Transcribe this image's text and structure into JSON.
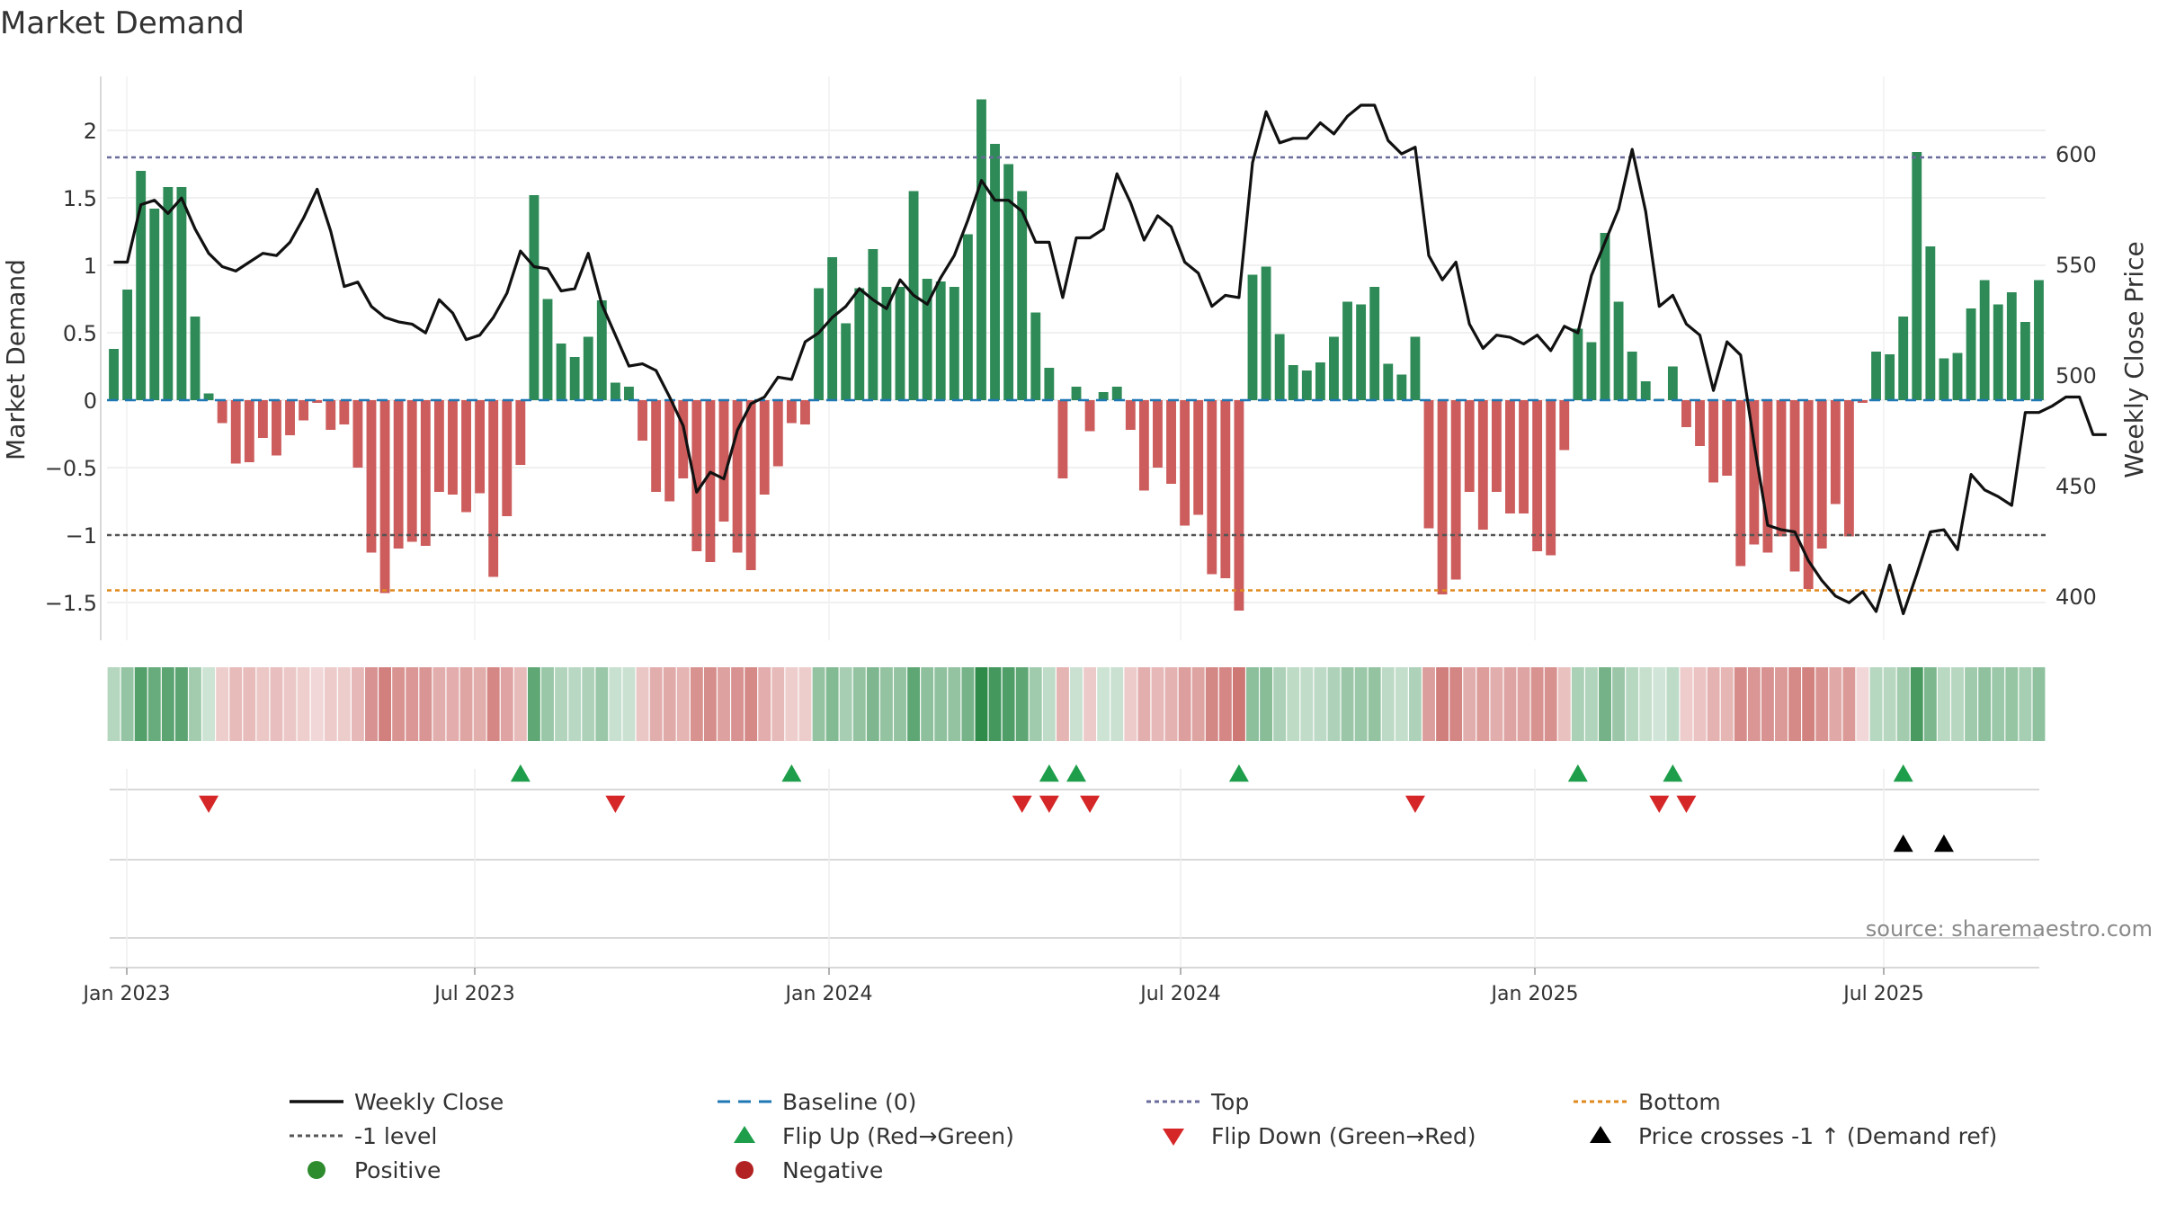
{
  "chart_data": {
    "type": "bar",
    "title": "Market Demand",
    "ylabel_left": "Market Demand",
    "ylabel_right": "Weekly Close Price",
    "x_ticks": [
      "Jan 2023",
      "Jul 2023",
      "Jan 2024",
      "Jul 2024",
      "Jan 2025",
      "Jul 2025"
    ],
    "y_left_ticks": [
      {
        "v": 2,
        "label": "2"
      },
      {
        "v": 1.5,
        "label": "1.5"
      },
      {
        "v": 1,
        "label": "1"
      },
      {
        "v": 0.5,
        "label": "0.5"
      },
      {
        "v": 0,
        "label": "0"
      },
      {
        "v": -0.5,
        "label": "−0.5"
      },
      {
        "v": -1,
        "label": "−1"
      },
      {
        "v": -1.5,
        "label": "−1.5"
      }
    ],
    "y_right_ticks": [
      {
        "v": 600,
        "label": "600"
      },
      {
        "v": 550,
        "label": "550"
      },
      {
        "v": 500,
        "label": "500"
      },
      {
        "v": 450,
        "label": "450"
      },
      {
        "v": 400,
        "label": "400"
      }
    ],
    "y_left_range": [
      -1.78,
      2.4
    ],
    "y_right_range": [
      380,
      635
    ],
    "ref_lines": {
      "top": 1.8,
      "minus_one": -1.0,
      "bottom": -1.41
    },
    "demand": [
      0.38,
      0.82,
      1.7,
      1.42,
      1.58,
      1.58,
      0.62,
      0.05,
      -0.17,
      -0.47,
      -0.46,
      -0.28,
      -0.41,
      -0.26,
      -0.15,
      -0.02,
      -0.22,
      -0.18,
      -0.5,
      -1.13,
      -1.43,
      -1.1,
      -1.05,
      -1.08,
      -0.68,
      -0.7,
      -0.83,
      -0.69,
      -1.31,
      -0.86,
      -0.48,
      1.52,
      0.75,
      0.42,
      0.32,
      0.47,
      0.74,
      0.13,
      0.1,
      -0.3,
      -0.68,
      -0.75,
      -0.58,
      -1.12,
      -1.2,
      -0.9,
      -1.13,
      -1.26,
      -0.7,
      -0.49,
      -0.17,
      -0.18,
      0.83,
      1.06,
      0.57,
      0.83,
      1.12,
      0.84,
      0.84,
      1.55,
      0.9,
      0.88,
      0.84,
      1.23,
      2.23,
      1.9,
      1.75,
      1.55,
      0.65,
      0.24,
      -0.58,
      0.1,
      -0.23,
      0.06,
      0.1,
      -0.22,
      -0.67,
      -0.5,
      -0.62,
      -0.93,
      -0.85,
      -1.29,
      -1.32,
      -1.56,
      0.93,
      0.99,
      0.49,
      0.26,
      0.22,
      0.28,
      0.47,
      0.73,
      0.71,
      0.84,
      0.27,
      0.19,
      0.47,
      -0.95,
      -1.44,
      -1.33,
      -0.68,
      -0.96,
      -0.68,
      -0.84,
      -0.84,
      -1.12,
      -1.15,
      -0.37,
      0.53,
      0.43,
      1.24,
      0.73,
      0.36,
      0.14,
      0.01,
      0.25,
      -0.2,
      -0.34,
      -0.61,
      -0.56,
      -1.23,
      -1.07,
      -1.13,
      -1.01,
      -1.27,
      -1.4,
      -1.1,
      -0.77,
      -1.01,
      -0.02,
      0.36,
      0.34,
      0.62,
      1.84,
      1.14,
      0.31,
      0.35,
      0.68,
      0.89,
      0.71,
      0.8,
      0.58,
      0.89
    ],
    "weekly_close": [
      551,
      551,
      577,
      579,
      573,
      580,
      566,
      555,
      549,
      547,
      551,
      555,
      554,
      560,
      571,
      584,
      565,
      540,
      542,
      531,
      526,
      524,
      523,
      519,
      534,
      528,
      516,
      518,
      526,
      537,
      556,
      549,
      548,
      538,
      539,
      555,
      532,
      518,
      504,
      505,
      502,
      490,
      477,
      447,
      456,
      453,
      475,
      487,
      490,
      499,
      498,
      515,
      519,
      526,
      531,
      539,
      534,
      530,
      543,
      536,
      532,
      544,
      554,
      570,
      588,
      579,
      579,
      574,
      560,
      560,
      535,
      562,
      562,
      566,
      591,
      578,
      561,
      572,
      567,
      551,
      546,
      531,
      536,
      535,
      596,
      619,
      605,
      607,
      607,
      614,
      609,
      617,
      622,
      622,
      606,
      600,
      603,
      554,
      543,
      551,
      523,
      512,
      518,
      517,
      514,
      518,
      511,
      522,
      519,
      545,
      560,
      575,
      602,
      574,
      531,
      536,
      523,
      518,
      493,
      515,
      509,
      469,
      432,
      430,
      429,
      416,
      407,
      400,
      397,
      402,
      393,
      414,
      392,
      410,
      429,
      430,
      421,
      455,
      448,
      445,
      441,
      483,
      483,
      486,
      490,
      490,
      473,
      473
    ],
    "heat_strip": {
      "positive_color": "#2e8b4a",
      "negative_color": "#c0504d"
    },
    "flip_up_weeks": [
      30,
      50,
      69,
      71,
      83,
      108,
      115,
      132
    ],
    "flip_down_weeks": [
      7,
      37,
      67,
      69,
      72,
      96,
      114,
      116
    ],
    "price_cross_weeks": [
      132,
      135
    ],
    "colors": {
      "positive_bar": "#2e8b57",
      "negative_bar": "#cd5c5c",
      "line": "#111111",
      "baseline": "#1f77b4",
      "top_line": "#6b6b9c",
      "minus_one_line": "#555555",
      "bottom_line": "#e08a1e",
      "flip_up": "#1e9e4a",
      "flip_down": "#d62728",
      "cross": "#000000"
    },
    "source": "source: sharemaestro.com",
    "legend": [
      {
        "key": "close",
        "label": "Weekly Close"
      },
      {
        "key": "baseline",
        "label": "Baseline (0)"
      },
      {
        "key": "top",
        "label": "Top"
      },
      {
        "key": "bottom",
        "label": "Bottom"
      },
      {
        "key": "minus1",
        "label": "-1 level"
      },
      {
        "key": "flipup",
        "label": "Flip Up (Red→Green)"
      },
      {
        "key": "flipdown",
        "label": "Flip Down (Green→Red)"
      },
      {
        "key": "cross",
        "label": "Price crosses -1 ↑ (Demand ref)"
      },
      {
        "key": "positive",
        "label": "Positive"
      },
      {
        "key": "negative",
        "label": "Negative"
      }
    ]
  }
}
